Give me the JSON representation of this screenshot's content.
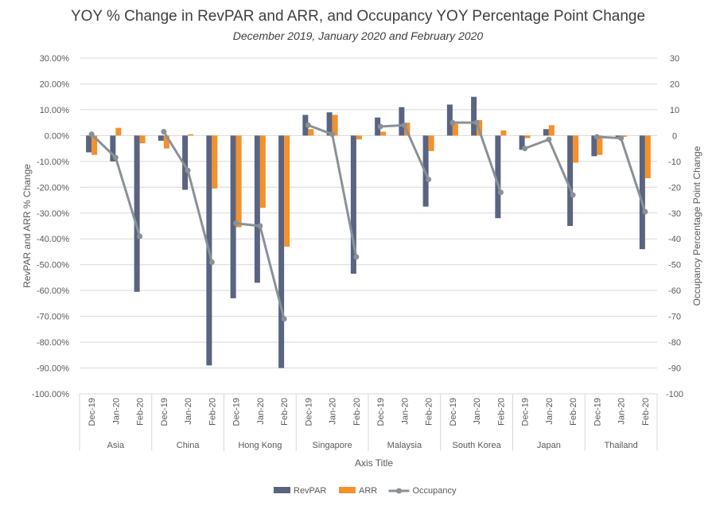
{
  "chart_data": {
    "type": "bar",
    "title": "YOY % Change in RevPAR and ARR, and Occupancy YOY Percentage Point Change",
    "subtitle": "December 2019, January 2020 and February 2020",
    "xlabel": "Axis Title",
    "ylabel": "RevPAR and ARR % Change",
    "y2label": "Occupancy Percentage Point Change",
    "ylim": [
      -100,
      30
    ],
    "y2lim": [
      -100,
      30
    ],
    "yticks": [
      "30.00%",
      "20.00%",
      "10.00%",
      "0.00%",
      "-10.00%",
      "-20.00%",
      "-30.00%",
      "-40.00%",
      "-50.00%",
      "-60.00%",
      "-70.00%",
      "-80.00%",
      "-90.00%",
      "-100.00%"
    ],
    "y2ticks": [
      "30",
      "20",
      "10",
      "0",
      "-10",
      "-20",
      "-30",
      "-40",
      "-50",
      "-60",
      "-70",
      "-80",
      "-90",
      "-100"
    ],
    "groups": [
      "Asia",
      "China",
      "Hong Kong",
      "Singapore",
      "Malaysia",
      "South Korea",
      "Japan",
      "Thailand"
    ],
    "months": [
      "Dec-19",
      "Jan-20",
      "Feb-20"
    ],
    "legend_position": "bottom",
    "series": [
      {
        "name": "RevPAR",
        "color": "#5a6480",
        "type": "bar",
        "values": [
          -6.5,
          -10,
          -60.5,
          -2,
          -21,
          -89,
          -63,
          -57,
          -90,
          8,
          9,
          -53.5,
          7,
          11,
          -27.5,
          12,
          15,
          -32,
          -5.5,
          2.5,
          -35,
          -8,
          -0.5,
          -44
        ]
      },
      {
        "name": "ARR",
        "color": "#f5902a",
        "type": "bar",
        "values": [
          -7.5,
          3,
          -3,
          -5,
          0.5,
          -20.5,
          -35.5,
          -28,
          -43,
          2.5,
          8,
          -1.5,
          1.5,
          5,
          -6,
          4.5,
          6,
          2,
          -1,
          4,
          -10.5,
          -7.5,
          -0.5,
          -16.5
        ]
      },
      {
        "name": "Occupancy",
        "color": "#8a9196",
        "type": "line",
        "axis": "secondary",
        "values": [
          0.5,
          -8.5,
          -39,
          1.5,
          -13.5,
          -49,
          -34,
          -35,
          -71,
          4,
          0.5,
          -47,
          3.5,
          4,
          -17,
          5,
          5,
          -22,
          -5,
          -1.5,
          -23,
          -0.5,
          -1,
          -29.5
        ]
      }
    ]
  }
}
